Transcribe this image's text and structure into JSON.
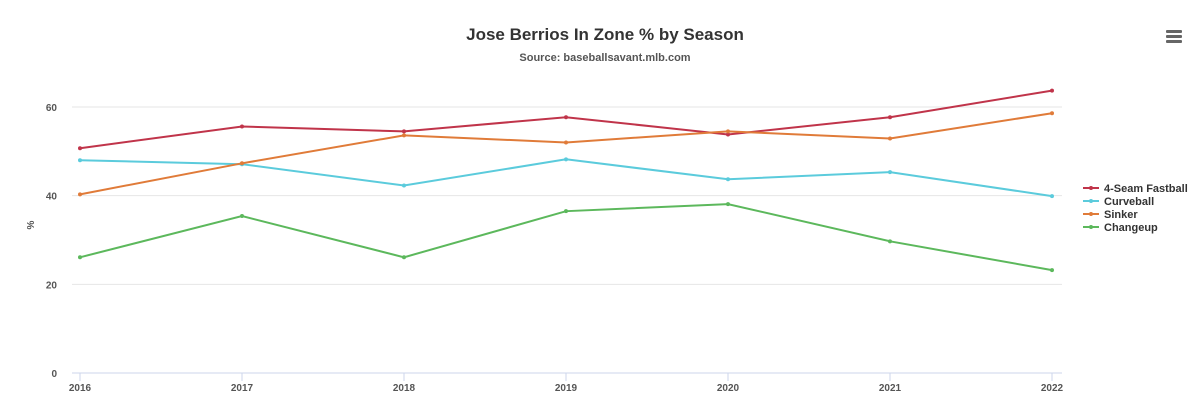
{
  "chart_data": {
    "type": "line",
    "title": "Jose Berrios In Zone % by Season",
    "subtitle": "Source: baseballsavant.mlb.com",
    "xlabel": "",
    "ylabel": "%",
    "x": [
      "2016",
      "2017",
      "2018",
      "2019",
      "2020",
      "2021",
      "2022"
    ],
    "ylim": [
      0,
      70
    ],
    "yticks": [
      0,
      20,
      40,
      60
    ],
    "grid": true,
    "legend_position": "right",
    "series": [
      {
        "name": "4-Seam Fastball",
        "color": "#c0344a",
        "values": [
          50.7,
          55.6,
          54.5,
          57.7,
          53.8,
          57.7,
          63.7
        ]
      },
      {
        "name": "Curveball",
        "color": "#5bcbdc",
        "values": [
          48.0,
          47.1,
          42.3,
          48.2,
          43.7,
          45.3,
          39.9
        ]
      },
      {
        "name": "Sinker",
        "color": "#e07b39",
        "values": [
          40.3,
          47.3,
          53.6,
          52.0,
          54.5,
          52.9,
          58.6
        ]
      },
      {
        "name": "Changeup",
        "color": "#5cb85c",
        "values": [
          26.1,
          35.4,
          26.1,
          36.5,
          38.1,
          29.7,
          23.2
        ]
      }
    ]
  },
  "menu": {
    "icon": "hamburger-menu-icon"
  }
}
